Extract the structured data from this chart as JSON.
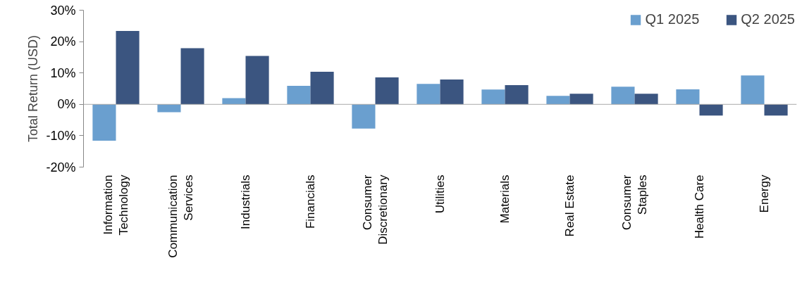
{
  "chart_data": {
    "type": "bar",
    "ylabel": "Total Return (USD)",
    "categories": [
      "Information Technology",
      "Communication Services",
      "Industrials",
      "Financials",
      "Consumer Discretionary",
      "Utilities",
      "Materials",
      "Real Estate",
      "Consumer Staples",
      "Health Care",
      "Energy"
    ],
    "series": [
      {
        "name": "Q1 2025",
        "color": "#6a9fcf",
        "values": [
          -11.6,
          -2.5,
          2.0,
          5.9,
          -7.7,
          6.5,
          4.7,
          2.7,
          5.6,
          4.8,
          9.2
        ]
      },
      {
        "name": "Q2 2025",
        "color": "#3b5580",
        "values": [
          23.4,
          17.9,
          15.4,
          10.4,
          8.6,
          7.9,
          6.1,
          3.4,
          3.4,
          -3.6,
          -3.6
        ]
      }
    ],
    "ylim": [
      -20,
      30
    ],
    "yticks": [
      {
        "value": -20,
        "label": "-20%"
      },
      {
        "value": -10,
        "label": "-10%"
      },
      {
        "value": 0,
        "label": "0%"
      },
      {
        "value": 10,
        "label": "10%"
      },
      {
        "value": 20,
        "label": "20%"
      },
      {
        "value": 30,
        "label": "30%"
      }
    ],
    "ref_lines": [
      {
        "axis": "y",
        "value": 0,
        "color": "#aaaaaa"
      }
    ],
    "grid": false,
    "legend": "top right"
  }
}
